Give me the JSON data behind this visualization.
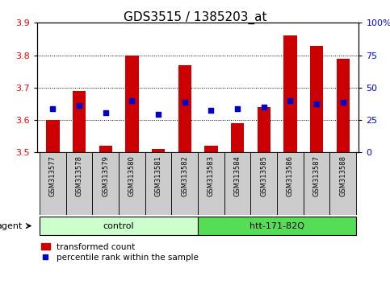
{
  "title": "GDS3515 / 1385203_at",
  "samples": [
    "GSM313577",
    "GSM313578",
    "GSM313579",
    "GSM313580",
    "GSM313581",
    "GSM313582",
    "GSM313583",
    "GSM313584",
    "GSM313585",
    "GSM313586",
    "GSM313587",
    "GSM313588"
  ],
  "bar_values": [
    3.6,
    3.69,
    3.52,
    3.8,
    3.51,
    3.77,
    3.52,
    3.59,
    3.64,
    3.86,
    3.83,
    3.79
  ],
  "dot_values": [
    3.635,
    3.645,
    3.622,
    3.66,
    3.617,
    3.655,
    3.63,
    3.635,
    3.64,
    3.66,
    3.65,
    3.655
  ],
  "bar_bottom": 3.5,
  "ylim_left": [
    3.5,
    3.9
  ],
  "ylim_right": [
    0,
    100
  ],
  "yticks_left": [
    3.5,
    3.6,
    3.7,
    3.8,
    3.9
  ],
  "yticks_right": [
    0,
    25,
    50,
    75,
    100
  ],
  "ytick_labels_right": [
    "0",
    "25",
    "50",
    "75",
    "100%"
  ],
  "bar_color": "#cc0000",
  "dot_color": "#0000cc",
  "groups": [
    {
      "label": "control",
      "start": 0,
      "end": 5,
      "color": "#ccffcc",
      "border": "#000000"
    },
    {
      "label": "htt-171-82Q",
      "start": 6,
      "end": 11,
      "color": "#55dd55",
      "border": "#000000"
    }
  ],
  "agent_label": "agent",
  "legend_bar_label": "transformed count",
  "legend_dot_label": "percentile rank within the sample",
  "background_color": "#ffffff",
  "plot_bg_color": "#ffffff",
  "sample_bg_color": "#cccccc",
  "grid_color": "#000000",
  "title_fontsize": 11,
  "tick_fontsize": 8,
  "sample_fontsize": 6,
  "group_fontsize": 8,
  "legend_fontsize": 7.5,
  "agent_fontsize": 8
}
